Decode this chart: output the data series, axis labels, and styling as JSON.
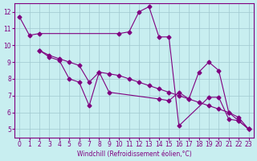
{
  "line1_x": [
    0,
    1,
    2,
    10,
    11,
    12,
    13,
    14,
    15,
    16,
    19,
    20,
    21,
    22,
    23
  ],
  "line1_y": [
    11.7,
    10.6,
    10.7,
    10.7,
    10.8,
    12.0,
    12.3,
    10.5,
    10.5,
    5.2,
    6.9,
    6.9,
    5.6,
    5.5,
    5.0
  ],
  "line2_x": [
    2,
    3,
    4,
    5,
    6,
    7,
    8,
    9,
    10,
    11,
    12,
    13,
    14,
    15,
    16,
    17,
    18,
    19,
    20,
    21,
    22,
    23
  ],
  "line2_y": [
    9.7,
    9.4,
    9.2,
    9.0,
    8.8,
    7.8,
    8.4,
    8.3,
    8.2,
    8.0,
    7.8,
    7.6,
    7.4,
    7.2,
    7.0,
    6.8,
    6.6,
    6.4,
    6.2,
    6.0,
    5.7,
    5.0
  ],
  "line3_x": [
    2,
    3,
    4,
    5,
    6,
    7,
    8,
    9,
    14,
    15,
    16,
    17,
    18,
    19,
    20,
    21,
    22,
    23
  ],
  "line3_y": [
    9.7,
    9.3,
    9.1,
    8.0,
    7.8,
    6.4,
    8.4,
    7.2,
    6.8,
    6.7,
    7.2,
    6.8,
    8.4,
    9.0,
    8.5,
    6.0,
    5.5,
    5.0
  ],
  "line_color": "#800080",
  "bg_color": "#c8eef0",
  "grid_color": "#a0c8d0",
  "xlabel": "Windchill (Refroidissement éolien,°C)",
  "xlim": [
    -0.5,
    23.5
  ],
  "ylim": [
    4.5,
    12.5
  ],
  "xticks": [
    0,
    1,
    2,
    3,
    4,
    5,
    6,
    7,
    8,
    9,
    10,
    11,
    12,
    13,
    14,
    15,
    16,
    17,
    18,
    19,
    20,
    21,
    22,
    23
  ],
  "yticks": [
    5,
    6,
    7,
    8,
    9,
    10,
    11,
    12
  ],
  "marker": "D",
  "markersize": 2.5,
  "linewidth": 0.8,
  "tick_fontsize": 5.5,
  "xlabel_fontsize": 5.5
}
